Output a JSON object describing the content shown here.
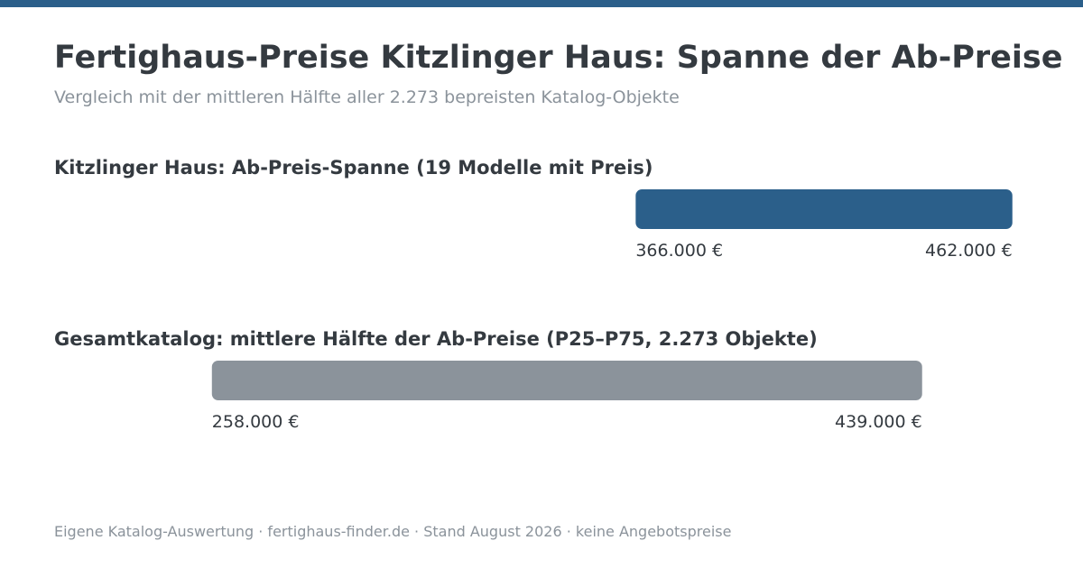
{
  "colors": {
    "accent": "#2b5f8a",
    "catalog_bar": "#8b939b",
    "title": "#343a40",
    "muted": "#8b939b"
  },
  "header": {
    "title": "Fertighaus-Preise Kitzlinger Haus: Spanne der Ab-Preise",
    "subtitle": "Vergleich mit der mittleren Hälfte aller 2.273 bepreisten Katalog-Objekte"
  },
  "sections": [
    {
      "title": "Kitzlinger Haus: Ab-Preis-Spanne (19 Modelle mit Preis)"
    },
    {
      "title": "Gesamtkatalog: mittlere Hälfte der Ab-Preise (P25–P75, 2.273 Objekte)"
    }
  ],
  "chart_data": {
    "type": "bar",
    "orientation": "horizontal-range",
    "currency": "€",
    "xlim": [
      204000,
      480000
    ],
    "series": [
      {
        "low": 366000,
        "high": 462000,
        "low_label": "366.000 €",
        "high_label": "462.000 €",
        "color": "#2b5f8a"
      },
      {
        "low": 258000,
        "high": 439000,
        "low_label": "258.000 €",
        "high_label": "439.000 €",
        "color": "#8b939b"
      }
    ]
  },
  "footer": {
    "text": "Eigene Katalog-Auswertung · fertighaus-finder.de · Stand August 2026 · keine Angebotspreise"
  }
}
